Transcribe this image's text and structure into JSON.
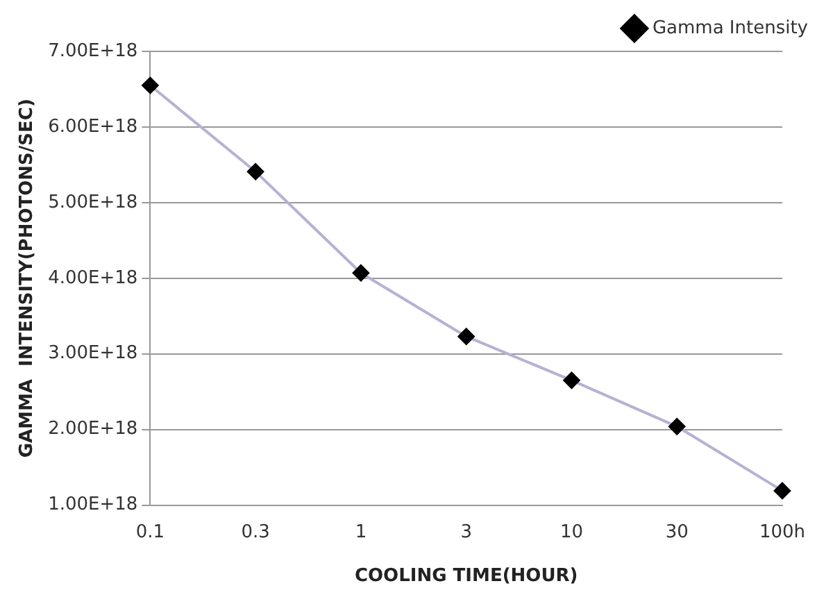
{
  "chart_data": {
    "type": "line",
    "xlabel": "COOLING TIME(HOUR)",
    "ylabel": "GAMMA  INTENSITY(PHOTONS/SEC)",
    "categories": [
      "0.1",
      "0.3",
      "1",
      "3",
      "10",
      "30",
      "100h"
    ],
    "series": [
      {
        "name": "Gamma Intensity",
        "color": "#b8b0d4",
        "values": [
          6.55e+18,
          5.41e+18,
          4.07e+18,
          3.23e+18,
          2.65e+18,
          2.04e+18,
          1.19e+18
        ]
      }
    ],
    "ylim": [
      1e+18,
      7e+18
    ],
    "yticks": [
      {
        "value": 1e+18,
        "label": "1.00E+18"
      },
      {
        "value": 2e+18,
        "label": "2.00E+18"
      },
      {
        "value": 3e+18,
        "label": "3.00E+18"
      },
      {
        "value": 4e+18,
        "label": "4.00E+18"
      },
      {
        "value": 5e+18,
        "label": "5.00E+18"
      },
      {
        "value": 6e+18,
        "label": "6.00E+18"
      },
      {
        "value": 7e+18,
        "label": "7.00E+18"
      }
    ],
    "grid": "y",
    "legend": "top right",
    "marker": "diamond",
    "line_style": "solid"
  }
}
